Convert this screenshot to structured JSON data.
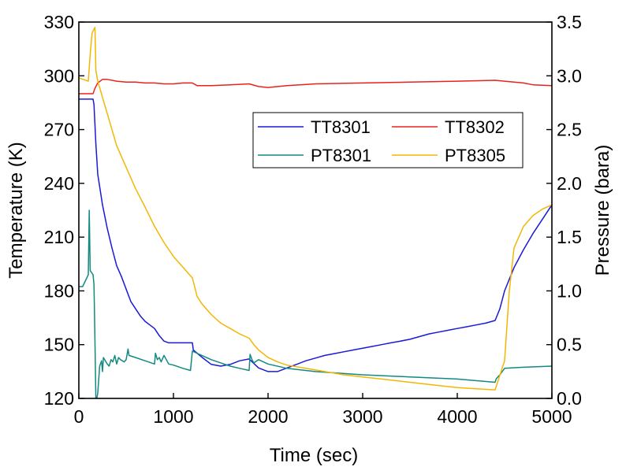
{
  "chart_data": {
    "type": "line",
    "xlabel": "Time (sec)",
    "ylabel_left": "Temperature (K)",
    "ylabel_right": "Pressure (bara)",
    "xlim": [
      0,
      5000
    ],
    "ylim_left": [
      120,
      330
    ],
    "ylim_right": [
      0.0,
      3.5
    ],
    "xticks": [
      "0",
      "1000",
      "2000",
      "3000",
      "4000",
      "5000"
    ],
    "yticks_left": [
      "120",
      "150",
      "180",
      "210",
      "240",
      "270",
      "300",
      "330"
    ],
    "yticks_right": [
      "0.0",
      "0.5",
      "1.0",
      "1.5",
      "2.0",
      "2.5",
      "3.0",
      "3.5"
    ],
    "grid": false,
    "legend_position": "upper-right",
    "series": [
      {
        "name": "TT8301",
        "axis": "left",
        "color": "#1a1ad8",
        "points": [
          [
            0,
            287
          ],
          [
            150,
            287
          ],
          [
            160,
            284
          ],
          [
            180,
            262
          ],
          [
            200,
            245
          ],
          [
            250,
            228
          ],
          [
            300,
            215
          ],
          [
            350,
            204
          ],
          [
            400,
            194
          ],
          [
            450,
            188
          ],
          [
            500,
            181
          ],
          [
            550,
            174
          ],
          [
            600,
            170
          ],
          [
            650,
            166
          ],
          [
            700,
            163
          ],
          [
            750,
            161
          ],
          [
            800,
            159
          ],
          [
            850,
            155
          ],
          [
            900,
            152
          ],
          [
            950,
            151
          ],
          [
            1000,
            151
          ],
          [
            1100,
            151
          ],
          [
            1200,
            151
          ],
          [
            1210,
            147
          ],
          [
            1300,
            143
          ],
          [
            1400,
            139
          ],
          [
            1500,
            138
          ],
          [
            1600,
            139
          ],
          [
            1700,
            141
          ],
          [
            1800,
            142
          ],
          [
            1900,
            137
          ],
          [
            2000,
            135
          ],
          [
            2100,
            135
          ],
          [
            2200,
            137
          ],
          [
            2300,
            139
          ],
          [
            2400,
            141
          ],
          [
            2500,
            142.5
          ],
          [
            2600,
            144
          ],
          [
            2700,
            145
          ],
          [
            2800,
            146
          ],
          [
            2900,
            147
          ],
          [
            3000,
            148
          ],
          [
            3100,
            149
          ],
          [
            3200,
            150
          ],
          [
            3300,
            151
          ],
          [
            3400,
            152
          ],
          [
            3500,
            153
          ],
          [
            3600,
            154.5
          ],
          [
            3700,
            156
          ],
          [
            3800,
            157
          ],
          [
            3900,
            158
          ],
          [
            4000,
            159
          ],
          [
            4100,
            160
          ],
          [
            4200,
            161
          ],
          [
            4300,
            162
          ],
          [
            4400,
            163.5
          ],
          [
            4450,
            170
          ],
          [
            4500,
            180
          ],
          [
            4600,
            193
          ],
          [
            4700,
            203
          ],
          [
            4800,
            212
          ],
          [
            4900,
            220
          ],
          [
            5000,
            228
          ]
        ]
      },
      {
        "name": "TT8302",
        "axis": "left",
        "color": "#e8231c",
        "points": [
          [
            0,
            290
          ],
          [
            100,
            290
          ],
          [
            150,
            290
          ],
          [
            170,
            293
          ],
          [
            200,
            296
          ],
          [
            250,
            298
          ],
          [
            300,
            298
          ],
          [
            400,
            297
          ],
          [
            500,
            296.5
          ],
          [
            600,
            296.5
          ],
          [
            700,
            296
          ],
          [
            800,
            296
          ],
          [
            900,
            295.5
          ],
          [
            1000,
            295.5
          ],
          [
            1100,
            296
          ],
          [
            1200,
            296
          ],
          [
            1250,
            294.5
          ],
          [
            1400,
            294.5
          ],
          [
            1600,
            295
          ],
          [
            1800,
            295.5
          ],
          [
            1900,
            294
          ],
          [
            2000,
            293.5
          ],
          [
            2200,
            294.5
          ],
          [
            2500,
            295.5
          ],
          [
            3000,
            296
          ],
          [
            3500,
            296.5
          ],
          [
            4000,
            297
          ],
          [
            4400,
            297.5
          ],
          [
            4500,
            297
          ],
          [
            4700,
            296
          ],
          [
            4800,
            295
          ],
          [
            5000,
            294.5
          ]
        ]
      },
      {
        "name": "PT8301",
        "axis": "right",
        "color": "#128a80",
        "points": [
          [
            0,
            1.04
          ],
          [
            40,
            1.04
          ],
          [
            100,
            1.15
          ],
          [
            110,
            1.75
          ],
          [
            120,
            1.19
          ],
          [
            150,
            1.15
          ],
          [
            160,
            1.06
          ],
          [
            170,
            0.55
          ],
          [
            180,
            0.0
          ],
          [
            190,
            0.0
          ],
          [
            200,
            0.05
          ],
          [
            220,
            0.3
          ],
          [
            240,
            0.35
          ],
          [
            250,
            0.25
          ],
          [
            260,
            0.38
          ],
          [
            280,
            0.35
          ],
          [
            300,
            0.32
          ],
          [
            320,
            0.3
          ],
          [
            340,
            0.36
          ],
          [
            360,
            0.34
          ],
          [
            380,
            0.4
          ],
          [
            400,
            0.32
          ],
          [
            420,
            0.38
          ],
          [
            440,
            0.36
          ],
          [
            460,
            0.35
          ],
          [
            480,
            0.34
          ],
          [
            500,
            0.36
          ],
          [
            520,
            0.46
          ],
          [
            530,
            0.4
          ],
          [
            600,
            0.38
          ],
          [
            700,
            0.35
          ],
          [
            800,
            0.32
          ],
          [
            810,
            0.42
          ],
          [
            830,
            0.36
          ],
          [
            850,
            0.38
          ],
          [
            870,
            0.34
          ],
          [
            900,
            0.4
          ],
          [
            950,
            0.32
          ],
          [
            1000,
            0.31
          ],
          [
            1100,
            0.28
          ],
          [
            1180,
            0.26
          ],
          [
            1200,
            0.44
          ],
          [
            1300,
            0.4
          ],
          [
            1400,
            0.36
          ],
          [
            1500,
            0.33
          ],
          [
            1600,
            0.3
          ],
          [
            1700,
            0.28
          ],
          [
            1800,
            0.26
          ],
          [
            1810,
            0.41
          ],
          [
            1830,
            0.36
          ],
          [
            1850,
            0.33
          ],
          [
            1900,
            0.36
          ],
          [
            2000,
            0.32
          ],
          [
            2200,
            0.28
          ],
          [
            2500,
            0.25
          ],
          [
            3000,
            0.22
          ],
          [
            3500,
            0.2
          ],
          [
            4000,
            0.18
          ],
          [
            4400,
            0.15
          ],
          [
            4410,
            0.18
          ],
          [
            4450,
            0.22
          ],
          [
            4500,
            0.28
          ],
          [
            4700,
            0.29
          ],
          [
            5000,
            0.3
          ]
        ]
      },
      {
        "name": "PT8305",
        "axis": "right",
        "color": "#f2b705",
        "points": [
          [
            0,
            2.98
          ],
          [
            100,
            2.95
          ],
          [
            120,
            3.2
          ],
          [
            140,
            3.4
          ],
          [
            170,
            3.45
          ],
          [
            180,
            3.05
          ],
          [
            200,
            2.95
          ],
          [
            250,
            2.8
          ],
          [
            300,
            2.65
          ],
          [
            350,
            2.5
          ],
          [
            400,
            2.35
          ],
          [
            500,
            2.15
          ],
          [
            600,
            1.95
          ],
          [
            700,
            1.78
          ],
          [
            800,
            1.6
          ],
          [
            900,
            1.45
          ],
          [
            1000,
            1.32
          ],
          [
            1100,
            1.22
          ],
          [
            1200,
            1.12
          ],
          [
            1250,
            0.95
          ],
          [
            1300,
            0.88
          ],
          [
            1400,
            0.78
          ],
          [
            1500,
            0.7
          ],
          [
            1600,
            0.65
          ],
          [
            1700,
            0.6
          ],
          [
            1800,
            0.56
          ],
          [
            1850,
            0.5
          ],
          [
            1900,
            0.45
          ],
          [
            2000,
            0.38
          ],
          [
            2100,
            0.34
          ],
          [
            2200,
            0.31
          ],
          [
            2400,
            0.28
          ],
          [
            2600,
            0.25
          ],
          [
            2800,
            0.22
          ],
          [
            3000,
            0.2
          ],
          [
            3200,
            0.18
          ],
          [
            3400,
            0.16
          ],
          [
            3600,
            0.14
          ],
          [
            3800,
            0.12
          ],
          [
            4000,
            0.1
          ],
          [
            4200,
            0.09
          ],
          [
            4400,
            0.08
          ],
          [
            4500,
            0.35
          ],
          [
            4550,
            1.0
          ],
          [
            4600,
            1.4
          ],
          [
            4700,
            1.6
          ],
          [
            4800,
            1.7
          ],
          [
            4900,
            1.76
          ],
          [
            5000,
            1.8
          ]
        ]
      }
    ]
  }
}
